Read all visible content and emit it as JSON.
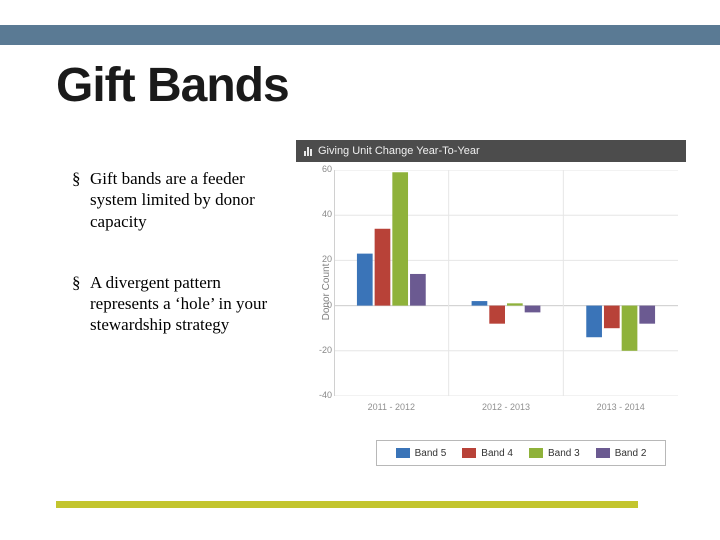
{
  "top_bar_color": "#5a7a94",
  "title": "Gift Bands",
  "title_color": "#1a1a1a",
  "title_fontsize": 48,
  "bullets": [
    "Gift bands are a feeder system limited by donor capacity",
    "A divergent pattern represents a ‘hole’ in your stewardship strategy"
  ],
  "chart": {
    "header_bg": "#4c4c4c",
    "header_text": "Giving Unit Change Year-To-Year",
    "ylabel": "Donor Count",
    "type": "grouped-bar",
    "categories": [
      "2011 - 2012",
      "2012 - 2013",
      "2013 - 2014"
    ],
    "series": [
      {
        "name": "Band 5",
        "color": "#3a74b8",
        "values": [
          23,
          2,
          -14
        ]
      },
      {
        "name": "Band 4",
        "color": "#b84238",
        "values": [
          34,
          -8,
          -10
        ]
      },
      {
        "name": "Band 3",
        "color": "#8fb23a",
        "values": [
          59,
          1,
          -20
        ]
      },
      {
        "name": "Band 2",
        "color": "#6b5a91",
        "values": [
          14,
          -3,
          -8
        ]
      }
    ],
    "ylim": [
      -40,
      60
    ],
    "ytick_step": 20,
    "background_color": "#ffffff",
    "grid_color": "#e6e6e6",
    "axis_color": "#d0d0d0",
    "label_fontsize": 10,
    "tick_fontsize": 9,
    "bar_group_width": 0.6,
    "bar_gap": 2
  },
  "bottom_bar_color": "#c3c52e",
  "bottom_bar_width": 582
}
